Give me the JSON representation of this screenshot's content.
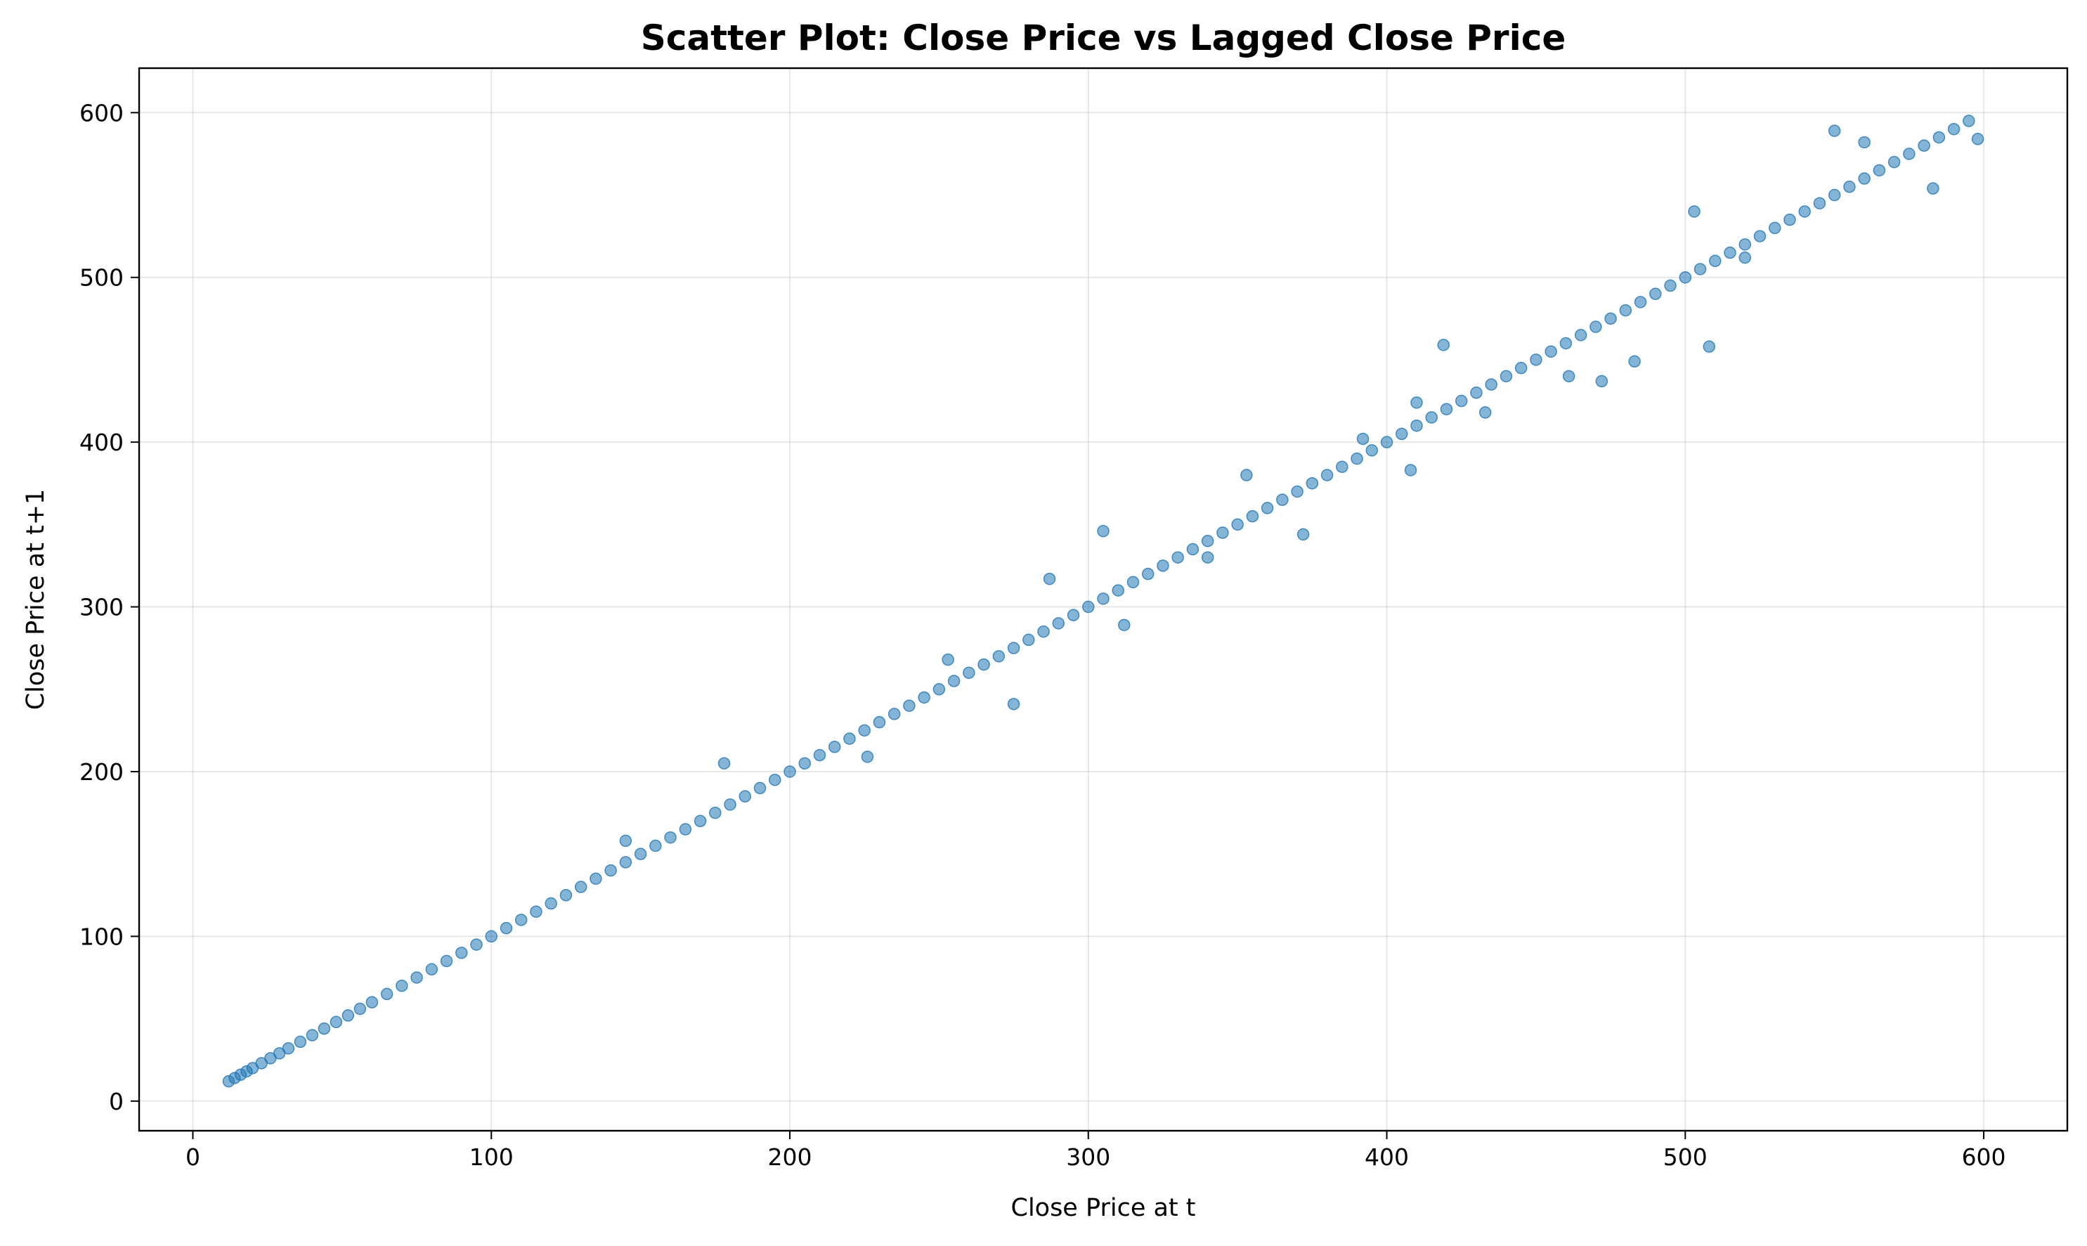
{
  "chart_data": {
    "type": "scatter",
    "title": "Scatter Plot: Close Price vs Lagged Close Price",
    "xlabel": "Close Price at t",
    "ylabel": "Close Price at t+1",
    "xlim": [
      -18,
      628
    ],
    "ylim": [
      -18,
      627
    ],
    "x_ticks": [
      0,
      100,
      200,
      300,
      400,
      500,
      600
    ],
    "y_ticks": [
      0,
      100,
      200,
      300,
      400,
      500,
      600
    ],
    "grid": true,
    "legend": "none",
    "marker_color": "#1f77b4",
    "marker_opacity": 0.55,
    "series": [
      {
        "x": [
          12,
          14,
          16,
          18,
          20,
          23,
          26,
          29,
          32,
          36,
          40,
          44,
          48,
          52,
          56,
          60,
          65,
          70,
          75,
          80,
          85,
          90,
          95,
          100,
          105,
          110,
          115,
          120,
          125,
          130,
          135,
          140,
          145,
          150,
          155,
          160,
          165,
          170,
          175,
          180,
          185,
          190,
          195,
          200,
          205,
          210,
          215,
          220,
          225,
          230,
          235,
          240,
          245,
          250,
          255,
          260,
          265,
          270,
          275,
          280,
          285,
          290,
          295,
          300,
          305,
          310,
          315,
          320,
          325,
          330,
          335,
          340,
          345,
          350,
          355,
          360,
          365,
          370,
          375,
          380,
          385,
          390,
          395,
          400,
          405,
          410,
          415,
          420,
          425,
          430,
          435,
          440,
          445,
          450,
          455,
          460,
          465,
          470,
          475,
          480,
          485,
          490,
          495,
          500,
          505,
          510,
          515,
          520,
          525,
          530,
          535,
          540,
          545,
          550,
          555,
          560,
          565,
          570,
          575,
          580,
          585,
          590,
          595,
          598,
          275,
          305,
          312,
          340,
          353,
          408,
          419,
          472,
          483,
          503,
          508,
          410,
          550,
          560,
          583,
          178,
          226,
          287,
          372,
          461,
          520,
          433,
          392,
          145,
          253
        ],
        "y": [
          12,
          14,
          16,
          18,
          20,
          23,
          26,
          29,
          32,
          36,
          40,
          44,
          48,
          52,
          56,
          60,
          65,
          70,
          75,
          80,
          85,
          90,
          95,
          100,
          105,
          110,
          115,
          120,
          125,
          130,
          135,
          140,
          145,
          150,
          155,
          160,
          165,
          170,
          175,
          180,
          185,
          190,
          195,
          200,
          205,
          210,
          215,
          220,
          225,
          230,
          235,
          240,
          245,
          250,
          255,
          260,
          265,
          270,
          275,
          280,
          285,
          290,
          295,
          300,
          305,
          310,
          315,
          320,
          325,
          330,
          335,
          340,
          345,
          350,
          355,
          360,
          365,
          370,
          375,
          380,
          385,
          390,
          395,
          400,
          405,
          410,
          415,
          420,
          425,
          430,
          435,
          440,
          445,
          450,
          455,
          460,
          465,
          470,
          475,
          480,
          485,
          490,
          495,
          500,
          505,
          510,
          515,
          520,
          525,
          530,
          535,
          540,
          545,
          550,
          555,
          560,
          565,
          570,
          575,
          580,
          585,
          590,
          595,
          584,
          241,
          346,
          289,
          330,
          380,
          383,
          459,
          437,
          449,
          540,
          458,
          424,
          589,
          582,
          554,
          205,
          209,
          317,
          344,
          440,
          512,
          418,
          402,
          158,
          268
        ]
      }
    ]
  }
}
